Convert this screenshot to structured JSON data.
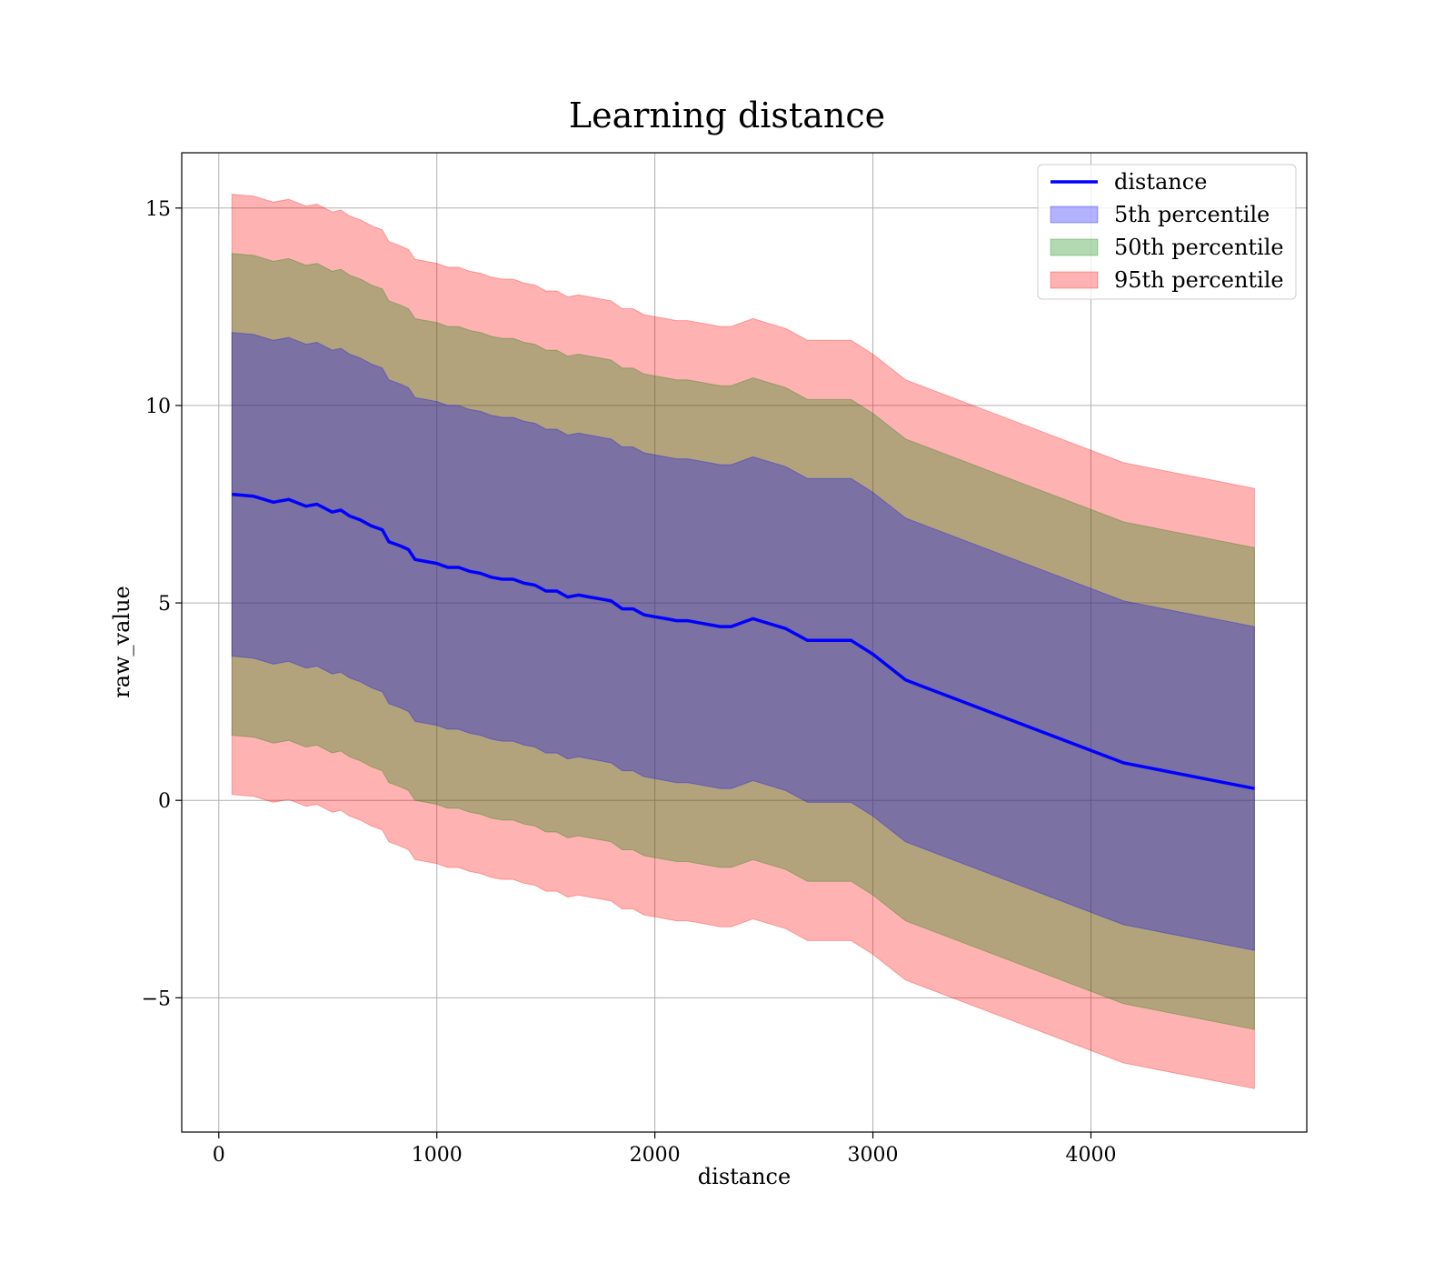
{
  "chart_data": {
    "type": "area",
    "title": "Learning distance",
    "xlabel": "distance",
    "ylabel": "raw_value",
    "xlim": [
      -170,
      4990
    ],
    "ylim": [
      -8.4,
      16.4
    ],
    "xticks": [
      0,
      1000,
      2000,
      3000,
      4000
    ],
    "yticks": [
      -5,
      0,
      5,
      10,
      15
    ],
    "ytick_labels": [
      "−5",
      "0",
      "5",
      "10",
      "15"
    ],
    "grid": true,
    "legend_position": "top-right",
    "x": [
      60,
      160,
      250,
      320,
      400,
      450,
      520,
      560,
      600,
      650,
      700,
      750,
      780,
      830,
      870,
      900,
      950,
      1000,
      1050,
      1100,
      1150,
      1200,
      1250,
      1300,
      1350,
      1400,
      1450,
      1500,
      1550,
      1600,
      1650,
      1700,
      1750,
      1800,
      1850,
      1900,
      1950,
      2000,
      2050,
      2100,
      2150,
      2200,
      2250,
      2300,
      2350,
      2450,
      2600,
      2700,
      2900,
      3000,
      3150,
      4150,
      4750
    ],
    "center": [
      7.75,
      7.7,
      7.55,
      7.62,
      7.45,
      7.5,
      7.3,
      7.35,
      7.2,
      7.1,
      6.95,
      6.85,
      6.55,
      6.45,
      6.35,
      6.1,
      6.05,
      6.0,
      5.9,
      5.9,
      5.8,
      5.75,
      5.65,
      5.6,
      5.6,
      5.5,
      5.45,
      5.3,
      5.3,
      5.15,
      5.2,
      5.15,
      5.1,
      5.05,
      4.85,
      4.85,
      4.7,
      4.65,
      4.6,
      4.55,
      4.55,
      4.5,
      4.45,
      4.4,
      4.4,
      4.6,
      4.35,
      4.05,
      4.05,
      3.7,
      3.05,
      0.95,
      0.3
    ],
    "series": [
      {
        "name": "distance",
        "kind": "line",
        "color": "#0000ff"
      },
      {
        "name": "5th percentile",
        "kind": "band",
        "color": "#0000ff",
        "half_width": 4.1
      },
      {
        "name": "50th percentile",
        "kind": "band",
        "color": "#008000",
        "half_width": 6.1
      },
      {
        "name": "95th percentile",
        "kind": "band",
        "color": "#ff0000",
        "half_width": 7.6
      }
    ]
  }
}
